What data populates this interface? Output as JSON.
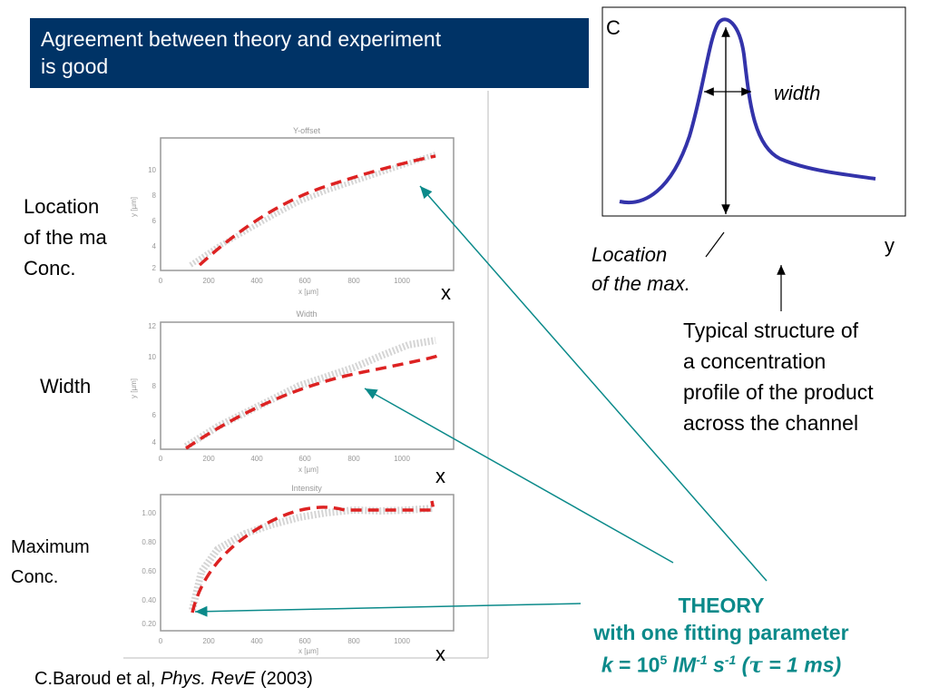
{
  "slide": {
    "title_line1": "Agreement between theory and experiment",
    "title_line2": "is good"
  },
  "left_labels": {
    "location": [
      "Location",
      "of the ma",
      "Conc."
    ],
    "width": "Width",
    "maximum": [
      "Maximum",
      "Conc."
    ]
  },
  "axis_x_labels": [
    "x",
    "x",
    "x"
  ],
  "profile_diagram": {
    "c_label": "C",
    "y_label": "y",
    "width_label": "width",
    "location_label": [
      "Location",
      "of the max."
    ],
    "curve_color": "#3333aa"
  },
  "typical_text": [
    "Typical structure of",
    "a concentration",
    "profile of the product",
    "across the channel"
  ],
  "theory": {
    "line1": "THEORY",
    "line2": "with one fitting  parameter",
    "formula": {
      "k": "k",
      "eq": " = 10",
      "exp5": "5",
      "unit_l": " lM",
      "exp_neg1a": "-1",
      "unit_s": " s",
      "exp_neg1b": "-1",
      "paren": "  (",
      "tau": "τ",
      "tail": "  = 1 ms)"
    },
    "color": "#0b8a8a"
  },
  "citation": {
    "authors": "C.Baroud et al, ",
    "journal": "Phys. RevE",
    "year": " (2003)"
  },
  "experiment_plots": [
    {
      "title": "Y-offset",
      "xticks": [
        "0",
        "200",
        "400",
        "600",
        "800",
        "1000"
      ],
      "yticks": [
        "10",
        "8",
        "6",
        "4",
        "2"
      ],
      "xlabel": "x [µm]",
      "ylabel": "y [µm]"
    },
    {
      "title": "Width",
      "xticks": [
        "0",
        "200",
        "400",
        "600",
        "800",
        "1000"
      ],
      "yticks": [
        "12",
        "10",
        "8",
        "6",
        "4"
      ],
      "xlabel": "x [µm]",
      "ylabel": "y [µm]"
    },
    {
      "title": "Intensity",
      "xticks": [
        "0",
        "200",
        "400",
        "600",
        "800",
        "1000"
      ],
      "yticks": [
        "1.00",
        "0.80",
        "0.60",
        "0.40",
        "0.20"
      ],
      "xlabel": "x [µm]",
      "ylabel": ""
    }
  ],
  "colors": {
    "theory_dash": "#dd2222",
    "arrow": "#0b8a8a",
    "title_bg": "#003366"
  }
}
